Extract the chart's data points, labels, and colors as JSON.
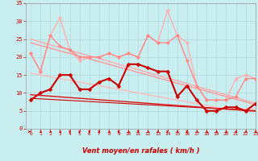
{
  "title": "",
  "xlabel": "Vent moyen/en rafales ( km/h )",
  "bg_color": "#c8eef0",
  "grid_color": "#b0d8dc",
  "xlim": [
    -0.5,
    23
  ],
  "ylim": [
    0,
    35
  ],
  "yticks": [
    0,
    5,
    10,
    15,
    20,
    25,
    30,
    35
  ],
  "xticks": [
    0,
    1,
    2,
    3,
    4,
    5,
    6,
    7,
    8,
    9,
    10,
    11,
    12,
    13,
    14,
    15,
    16,
    17,
    18,
    19,
    20,
    21,
    22,
    23
  ],
  "series": [
    {
      "y": [
        21,
        16,
        26,
        31,
        22,
        19,
        20,
        20,
        21,
        20,
        21,
        20,
        26,
        24,
        33,
        26,
        24,
        12,
        8,
        8,
        8,
        14,
        15,
        14
      ],
      "color": "#ffb0b0",
      "lw": 1.0,
      "marker": "o",
      "ms": 2.5,
      "zorder": 2
    },
    {
      "y": [
        21,
        16,
        26,
        23,
        22,
        20,
        20,
        20,
        21,
        20,
        21,
        20,
        26,
        24,
        24,
        26,
        19,
        12,
        8,
        8,
        8,
        9,
        14,
        14
      ],
      "color": "#ff8888",
      "lw": 1.0,
      "marker": "o",
      "ms": 2.5,
      "zorder": 3
    },
    {
      "y": [
        25.0,
        24.2,
        23.4,
        22.7,
        21.9,
        21.1,
        20.3,
        19.6,
        18.8,
        18.0,
        17.2,
        16.5,
        15.7,
        14.9,
        14.1,
        13.4,
        12.6,
        11.8,
        11.0,
        10.3,
        9.5,
        8.7,
        7.9,
        7.2
      ],
      "color": "#ffaaaa",
      "lw": 1.0,
      "marker": null,
      "ms": 0,
      "zorder": 2
    },
    {
      "y": [
        24.0,
        23.2,
        22.5,
        21.7,
        21.0,
        20.2,
        19.5,
        18.7,
        18.0,
        17.2,
        16.5,
        15.7,
        15.0,
        14.2,
        13.5,
        12.7,
        12.0,
        11.2,
        10.5,
        9.7,
        9.0,
        8.2,
        7.5,
        6.7
      ],
      "color": "#ff9999",
      "lw": 1.0,
      "marker": null,
      "ms": 0,
      "zorder": 2
    },
    {
      "y": [
        15.5,
        15.0,
        14.5,
        14.0,
        13.5,
        13.0,
        12.5,
        12.0,
        11.5,
        11.0,
        10.5,
        10.0,
        9.5,
        9.0,
        8.5,
        8.0,
        7.5,
        7.0,
        6.5,
        6.0,
        5.5,
        5.5,
        5.5,
        5.5
      ],
      "color": "#ffbbbb",
      "lw": 1.0,
      "marker": null,
      "ms": 0,
      "zorder": 2
    },
    {
      "y": [
        8,
        10,
        11,
        15,
        15,
        11,
        11,
        13,
        14,
        12,
        18,
        18,
        17,
        16,
        16,
        9,
        12,
        8,
        5,
        5,
        6,
        6,
        5,
        7
      ],
      "color": "#cc0000",
      "lw": 1.5,
      "marker": "D",
      "ms": 2.5,
      "zorder": 5
    },
    {
      "y": [
        9.5,
        9.3,
        9.1,
        8.9,
        8.7,
        8.5,
        8.3,
        8.1,
        7.9,
        7.7,
        7.5,
        7.3,
        7.1,
        6.9,
        6.7,
        6.5,
        6.3,
        6.1,
        5.9,
        5.7,
        5.5,
        5.3,
        5.1,
        4.9
      ],
      "color": "#dd1111",
      "lw": 1.0,
      "marker": null,
      "ms": 0,
      "zorder": 4
    },
    {
      "y": [
        8.5,
        8.35,
        8.2,
        8.05,
        7.9,
        7.75,
        7.6,
        7.45,
        7.3,
        7.15,
        7.0,
        6.85,
        6.7,
        6.55,
        6.4,
        6.25,
        6.1,
        5.95,
        5.8,
        5.65,
        5.5,
        5.35,
        5.2,
        5.05
      ],
      "color": "#cc0000",
      "lw": 0.8,
      "marker": null,
      "ms": 0,
      "zorder": 3
    }
  ],
  "arrow_color": "#cc0000",
  "arrow_angles": [
    90,
    45,
    45,
    45,
    0,
    0,
    0,
    0,
    45,
    0,
    45,
    0,
    45,
    45,
    0,
    45,
    0,
    45,
    45,
    45,
    45,
    45,
    45,
    45
  ]
}
